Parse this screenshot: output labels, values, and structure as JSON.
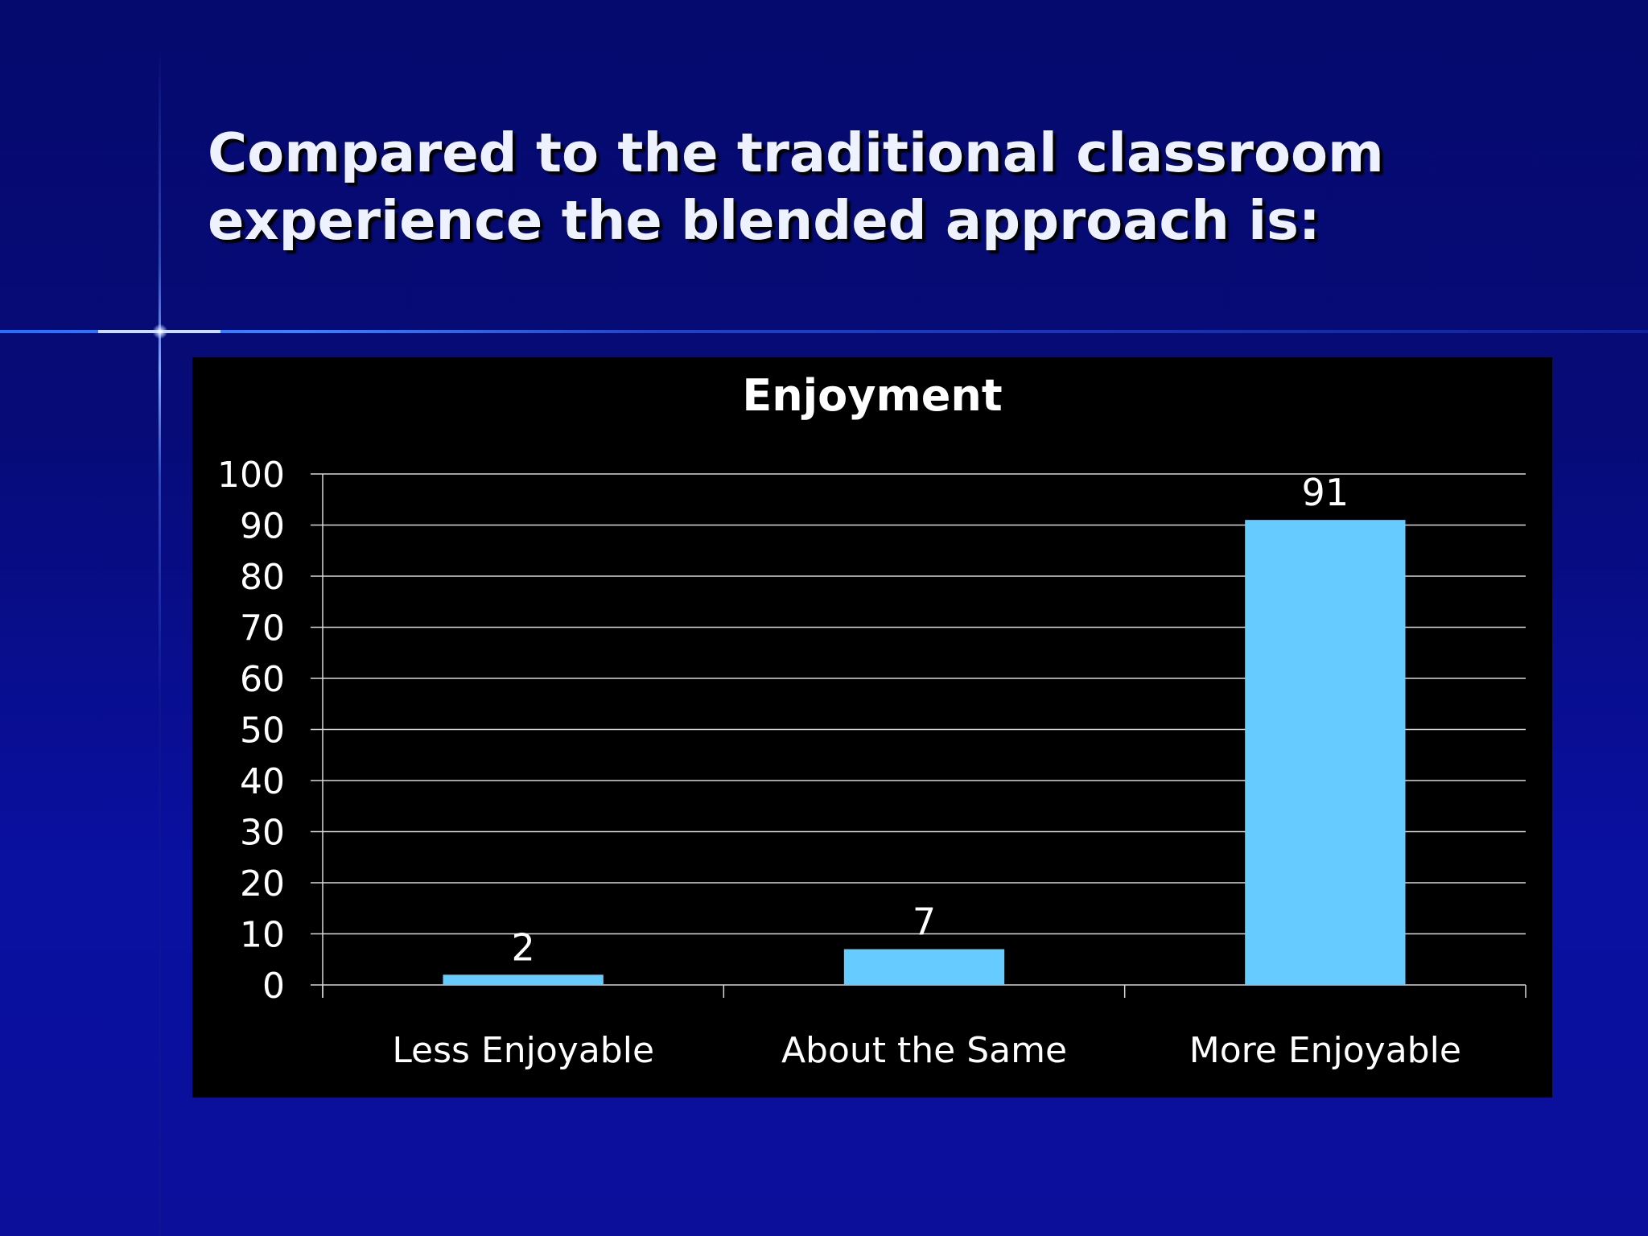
{
  "slide": {
    "title_line1": "Compared to the traditional classroom",
    "title_line2": "experience the blended approach is:"
  },
  "colors": {
    "background": "#06097a",
    "bar": "#66ccff",
    "chart_background": "#000000",
    "text": "#ffffff"
  },
  "chart_data": {
    "type": "bar",
    "title": "Enjoyment",
    "categories": [
      "Less Enjoyable",
      "About the Same",
      "More Enjoyable"
    ],
    "values": [
      2,
      7,
      91
    ],
    "data_labels": [
      "2",
      "7",
      "91"
    ],
    "xlabel": "",
    "ylabel": "",
    "ylim": [
      0,
      100
    ],
    "yticks": [
      0,
      10,
      20,
      30,
      40,
      50,
      60,
      70,
      80,
      90,
      100
    ],
    "grid": true,
    "legend": "none"
  }
}
